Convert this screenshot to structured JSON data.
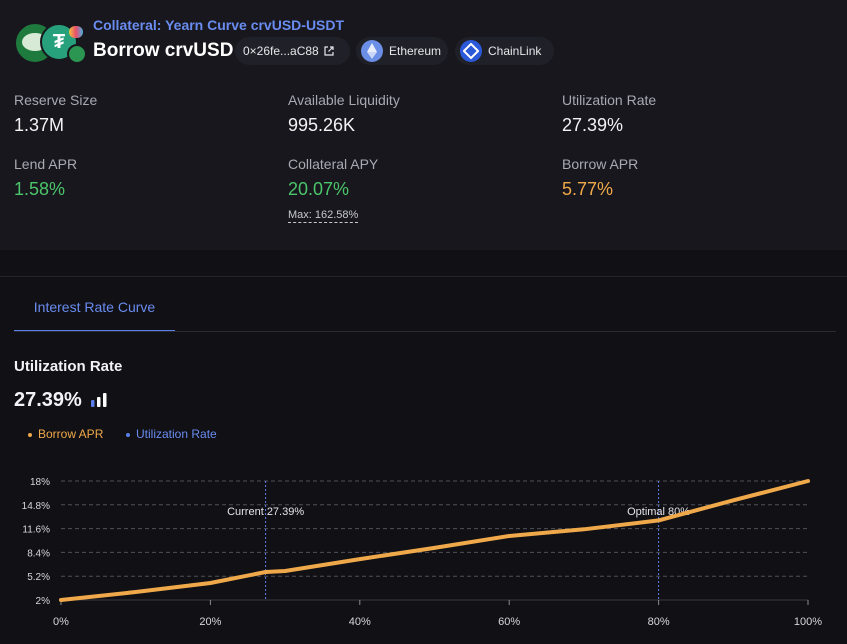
{
  "header": {
    "collateral_title": "Collateral: Yearn Curve crvUSD-USDT",
    "page_title": "Borrow crvUSD",
    "address": "0×26fe...aC88",
    "network": "Ethereum",
    "oracle": "ChainLink"
  },
  "stats": {
    "reserve_size": {
      "label": "Reserve Size",
      "value": "1.37M"
    },
    "available_liquidity": {
      "label": "Available Liquidity",
      "value": "995.26K"
    },
    "utilization_rate": {
      "label": "Utilization Rate",
      "value": "27.39%"
    },
    "lend_apr": {
      "label": "Lend APR",
      "value": "1.58%"
    },
    "collateral_apy": {
      "label": "Collateral APY",
      "value": "20.07%",
      "max": "Max: 162.58%"
    },
    "borrow_apr": {
      "label": "Borrow APR",
      "value": "5.77%"
    }
  },
  "tabs": [
    {
      "label": "Interest Rate Curve",
      "active": true
    }
  ],
  "utilization": {
    "title": "Utilization Rate",
    "value": "27.39%"
  },
  "colors": {
    "borrow": "#f0a94a",
    "utilization": "#5b7ee8",
    "accent": "#6a8cf0",
    "green": "#4bc46a"
  },
  "chart_data": {
    "type": "line",
    "series": [
      {
        "name": "Borrow APR",
        "x": [
          0,
          10,
          20,
          27.39,
          30,
          40,
          50,
          60,
          70,
          80,
          90,
          100
        ],
        "values": [
          2,
          3.08,
          4.28,
          5.77,
          5.9,
          7.5,
          9.0,
          10.6,
          11.5,
          12.7,
          15.4,
          18
        ]
      }
    ],
    "legend": [
      "Borrow APR",
      "Utilization Rate"
    ],
    "legend_position": "top-left",
    "xlim": [
      0,
      100
    ],
    "x_ticks": [
      "0%",
      "20%",
      "40%",
      "60%",
      "80%",
      "100%"
    ],
    "x_tick_values": [
      0,
      20,
      40,
      60,
      80,
      100
    ],
    "ylim": [
      2,
      18
    ],
    "y_ticks": [
      "2%",
      "5.2%",
      "8.4%",
      "11.6%",
      "14.8%",
      "18%"
    ],
    "y_tick_values": [
      2,
      5.2,
      8.4,
      11.6,
      14.8,
      18
    ],
    "grid": true,
    "annotations": [
      {
        "label": "Current 27.39%",
        "x": 27.39
      },
      {
        "label": "Optimal 80%",
        "x": 80
      }
    ]
  }
}
